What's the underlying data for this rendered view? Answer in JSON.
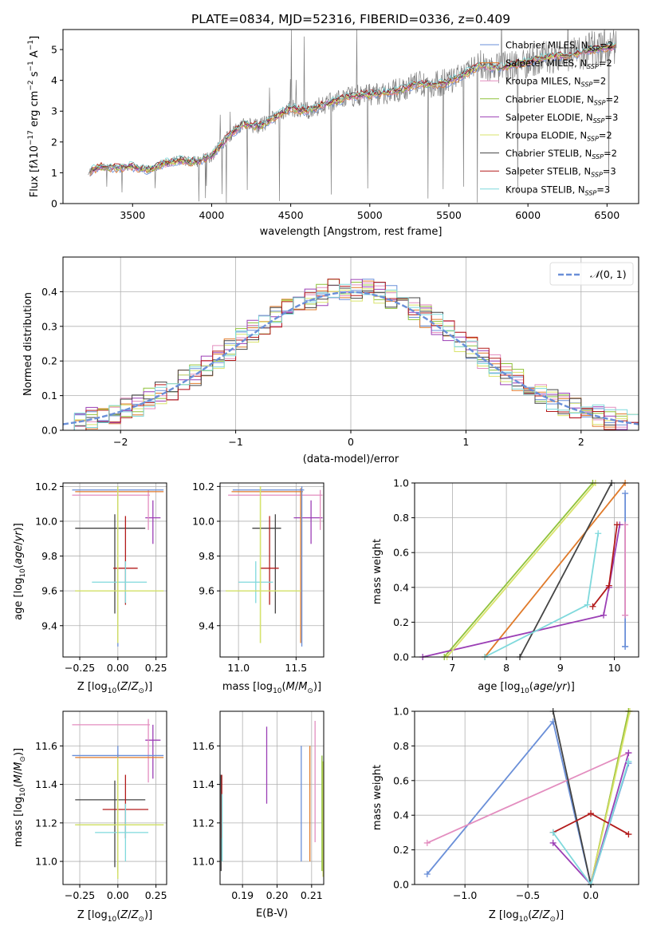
{
  "figure": {
    "colors": [
      "#6a8fd8",
      "#e07a2a",
      "#e38dbf",
      "#8fc23a",
      "#9b3fb5",
      "#d9e36b",
      "#444444",
      "#b31b1b",
      "#7fd9dc"
    ],
    "grey": "#808080"
  },
  "chart_data": [
    {
      "id": "spectrum",
      "type": "line",
      "title": "PLATE=0834, MJD=52316, FIBERID=0336, z=0.409",
      "xlabel": "wavelength [Angstrom, rest frame]",
      "ylabel": "Flux [f$_\\lambda$10$^{-17}$ erg cm$^{-2}$ s$^{-1}$ A$^{-1}$]",
      "xlim": [
        3060,
        6700
      ],
      "ylim": [
        0,
        5.65
      ],
      "xticks": [
        3500,
        4000,
        4500,
        5000,
        5500,
        6000,
        6500
      ],
      "yticks": [
        0,
        1,
        2,
        3,
        4,
        5
      ],
      "grid": false,
      "legend_position": "top-right",
      "legend": [
        "Chabrier MILES, N$_{SSP}$=2",
        "Salpeter MILES, N$_{SSP}$=2",
        "Kroupa MILES, N$_{SSP}$=2",
        "Chabrier ELODIE, N$_{SSP}$=2",
        "Salpeter ELODIE, N$_{SSP}$=3",
        "Kroupa ELODIE, N$_{SSP}$=2",
        "Chabrier STELIB, N$_{SSP}$=2",
        "Salpeter STELIB, N$_{SSP}$=3",
        "Kroupa STELIB, N$_{SSP}$=3"
      ],
      "continuum": {
        "x": [
          3230,
          3300,
          3400,
          3500,
          3600,
          3700,
          3800,
          3900,
          4000,
          4100,
          4200,
          4300,
          4400,
          4500,
          4600,
          4700,
          4800,
          4900,
          5000,
          5100,
          5200,
          5300,
          5400,
          5500,
          5600,
          5700,
          5800,
          5900,
          6000,
          6100,
          6200,
          6300,
          6400,
          6550
        ],
        "y": [
          1.05,
          1.2,
          1.15,
          1.2,
          1.1,
          1.3,
          1.4,
          1.35,
          1.55,
          2.15,
          2.6,
          2.5,
          2.8,
          3.1,
          3.0,
          3.2,
          3.35,
          3.5,
          3.55,
          3.6,
          3.7,
          3.9,
          3.85,
          3.95,
          4.2,
          4.5,
          4.4,
          4.5,
          4.6,
          4.75,
          4.8,
          4.85,
          5.0,
          5.1
        ]
      }
    },
    {
      "id": "residuals",
      "type": "area",
      "xlabel": "(data-model)/error",
      "ylabel": "Normed distribution",
      "xlim": [
        -2.5,
        2.5
      ],
      "ylim": [
        0,
        0.5
      ],
      "xticks": [
        -2,
        -1,
        0,
        1,
        2
      ],
      "yticks": [
        0.0,
        0.1,
        0.2,
        0.3,
        0.4
      ],
      "grid": true,
      "legend_position": "top-right",
      "legend": [
        "$\\mathcal{N}(0,1)$"
      ]
    },
    {
      "id": "age_vs_Z",
      "type": "scatter",
      "xlabel": "Z [log$_{10}$($Z/Z_\\odot$)]",
      "ylabel": "age  [log$_{10}$($age/yr$)]",
      "xlim": [
        -0.36,
        0.32
      ],
      "ylim": [
        9.22,
        10.22
      ],
      "xticks": [
        -0.25,
        0.0,
        0.25
      ],
      "yticks": [
        9.4,
        9.6,
        9.8,
        10.0,
        10.2
      ],
      "grid": true,
      "points": [
        {
          "x": -0.02,
          "y": 9.96,
          "xerr": [
            0.26,
            0.2
          ],
          "yerr": [
            0.49,
            0.08
          ],
          "series": 6
        },
        {
          "x": 0.05,
          "y": 9.73,
          "xerr": [
            0.08,
            0.08
          ],
          "yerr": [
            0.21,
            0.3
          ],
          "series": 7
        },
        {
          "x": 0.05,
          "y": 9.65,
          "xerr": [
            0.22,
            0.14
          ],
          "yerr": [
            0.12,
            0.12
          ],
          "series": 8
        },
        {
          "x": 0.23,
          "y": 10.02,
          "xerr": [
            0.05,
            0.05
          ],
          "yerr": [
            0.15,
            0.1
          ],
          "series": 4
        },
        {
          "x": 0.2,
          "y": 10.15,
          "xerr": [
            0.5,
            0.01
          ],
          "yerr": [
            0.2,
            0.03
          ],
          "series": 2
        },
        {
          "x": 0.0,
          "y": 10.17,
          "xerr": [
            0.28,
            0.3
          ],
          "yerr": [
            0.87,
            0.02
          ],
          "series": 1
        },
        {
          "x": 0.0,
          "y": 10.18,
          "xerr": [
            0.3,
            0.3
          ],
          "yerr": [
            0.9,
            0.02
          ],
          "series": 0
        },
        {
          "x": 0.0,
          "y": 9.6,
          "xerr": [
            0.28,
            0.3
          ],
          "yerr": [
            0.3,
            0.6
          ],
          "series": 3
        },
        {
          "x": 0.0,
          "y": 9.6,
          "xerr": [
            0.28,
            0.3
          ],
          "yerr": [
            0.3,
            0.6
          ],
          "series": 5
        }
      ]
    },
    {
      "id": "age_vs_mass",
      "type": "scatter",
      "xlabel": "mass [log$_{10}$($M/M_\\odot$)]",
      "ylabel": "",
      "xlim": [
        10.84,
        11.74
      ],
      "ylim": [
        9.22,
        10.22
      ],
      "xticks": [
        11.0,
        11.5
      ],
      "yticks": [
        9.4,
        9.6,
        9.8,
        10.0,
        10.2
      ],
      "grid": true,
      "points": [
        {
          "x": 11.32,
          "y": 9.96,
          "xerr": [
            0.2,
            0.05
          ],
          "yerr": [
            0.49,
            0.08
          ],
          "series": 6
        },
        {
          "x": 11.27,
          "y": 9.73,
          "xerr": [
            0.08,
            0.08
          ],
          "yerr": [
            0.21,
            0.3
          ],
          "series": 7
        },
        {
          "x": 11.15,
          "y": 9.65,
          "xerr": [
            0.15,
            0.15
          ],
          "yerr": [
            0.12,
            0.12
          ],
          "series": 8
        },
        {
          "x": 11.63,
          "y": 10.02,
          "xerr": [
            0.15,
            0.1
          ],
          "yerr": [
            0.15,
            0.1
          ],
          "series": 4
        },
        {
          "x": 11.71,
          "y": 10.15,
          "xerr": [
            0.8,
            0.02
          ],
          "yerr": [
            0.2,
            0.03
          ],
          "series": 2
        },
        {
          "x": 11.54,
          "y": 10.17,
          "xerr": [
            0.6,
            0.02
          ],
          "yerr": [
            0.87,
            0.02
          ],
          "series": 1
        },
        {
          "x": 11.55,
          "y": 10.18,
          "xerr": [
            0.6,
            0.02
          ],
          "yerr": [
            0.9,
            0.02
          ],
          "series": 0
        },
        {
          "x": 11.19,
          "y": 9.6,
          "xerr": [
            0.3,
            0.35
          ],
          "yerr": [
            0.3,
            0.6
          ],
          "series": 3
        },
        {
          "x": 11.19,
          "y": 9.6,
          "xerr": [
            0.3,
            0.35
          ],
          "yerr": [
            0.3,
            0.6
          ],
          "series": 5
        }
      ]
    },
    {
      "id": "weight_vs_age",
      "type": "line",
      "xlabel": "age  [log$_{10}$($age/yr$)]",
      "ylabel": "mass weight",
      "xlim": [
        6.3,
        10.45
      ],
      "ylim": [
        0,
        1
      ],
      "xticks": [
        7,
        8,
        9,
        10
      ],
      "yticks": [
        0.0,
        0.2,
        0.4,
        0.6,
        0.8,
        1.0
      ],
      "grid": true,
      "series": [
        {
          "series": 0,
          "x": [
            10.2,
            10.2,
            10.2
          ],
          "y": [
            0.06,
            0.94,
            0.06
          ]
        },
        {
          "series": 1,
          "x": [
            7.6,
            10.2
          ],
          "y": [
            0.0,
            1.0
          ]
        },
        {
          "series": 2,
          "x": [
            10.2,
            10.2
          ],
          "y": [
            0.24,
            0.76
          ]
        },
        {
          "series": 3,
          "x": [
            6.85,
            9.6
          ],
          "y": [
            0.0,
            1.0
          ]
        },
        {
          "series": 4,
          "x": [
            6.45,
            9.8,
            9.9,
            10.1
          ],
          "y": [
            0.0,
            0.24,
            0.4,
            0.76
          ]
        },
        {
          "series": 5,
          "x": [
            6.9,
            9.65
          ],
          "y": [
            0.0,
            1.0
          ]
        },
        {
          "series": 6,
          "x": [
            8.25,
            9.95
          ],
          "y": [
            0.0,
            1.0
          ]
        },
        {
          "series": 7,
          "x": [
            9.6,
            9.9,
            10.05
          ],
          "y": [
            0.29,
            0.41,
            0.76
          ]
        },
        {
          "series": 8,
          "x": [
            7.6,
            9.5,
            9.7
          ],
          "y": [
            0.0,
            0.3,
            0.71
          ]
        }
      ]
    },
    {
      "id": "mass_vs_Z",
      "type": "scatter",
      "xlabel": "Z [log$_{10}$($Z/Z_\\odot$)]",
      "ylabel": "mass [log$_{10}$($M/M_\\odot$)]",
      "xlim": [
        -0.36,
        0.32
      ],
      "ylim": [
        10.88,
        11.78
      ],
      "xticks": [
        -0.25,
        0.0,
        0.25
      ],
      "yticks": [
        11.0,
        11.2,
        11.4,
        11.6
      ],
      "grid": true,
      "points": [
        {
          "x": -0.02,
          "y": 11.32,
          "xerr": [
            0.26,
            0.2
          ],
          "yerr": [
            0.35,
            0.1
          ],
          "series": 6
        },
        {
          "x": 0.05,
          "y": 11.27,
          "xerr": [
            0.15,
            0.15
          ],
          "yerr": [
            0.15,
            0.18
          ],
          "series": 7
        },
        {
          "x": 0.05,
          "y": 11.15,
          "xerr": [
            0.2,
            0.15
          ],
          "yerr": [
            0.15,
            0.15
          ],
          "series": 8
        },
        {
          "x": 0.23,
          "y": 11.63,
          "xerr": [
            0.05,
            0.05
          ],
          "yerr": [
            0.2,
            0.08
          ],
          "series": 4
        },
        {
          "x": 0.2,
          "y": 11.71,
          "xerr": [
            0.5,
            0.01
          ],
          "yerr": [
            0.3,
            0.03
          ],
          "series": 2
        },
        {
          "x": 0.0,
          "y": 11.54,
          "xerr": [
            0.28,
            0.3
          ],
          "yerr": [
            0.6,
            0.02
          ],
          "series": 1
        },
        {
          "x": 0.0,
          "y": 11.55,
          "xerr": [
            0.3,
            0.3
          ],
          "yerr": [
            0.6,
            0.05
          ],
          "series": 0
        },
        {
          "x": 0.0,
          "y": 11.19,
          "xerr": [
            0.28,
            0.3
          ],
          "yerr": [
            0.28,
            0.35
          ],
          "series": 3
        },
        {
          "x": 0.0,
          "y": 11.19,
          "xerr": [
            0.28,
            0.3
          ],
          "yerr": [
            0.28,
            0.35
          ],
          "series": 5
        }
      ]
    },
    {
      "id": "mass_vs_ebv",
      "type": "scatter",
      "xlabel": "E(B-V)",
      "ylabel": "",
      "xlim": [
        0.1835,
        0.2135
      ],
      "ylim": [
        10.88,
        11.78
      ],
      "xticks": [
        0.19,
        0.2,
        0.21
      ],
      "yticks": [
        11.0,
        11.2,
        11.4,
        11.6
      ],
      "grid": true,
      "points": [
        {
          "x": 0.1838,
          "y": 11.2,
          "yerr": [
            0.25,
            0.25
          ],
          "series": 6
        },
        {
          "x": 0.184,
          "y": 11.3,
          "yerr": [
            0.18,
            0.15
          ],
          "series": 7
        },
        {
          "x": 0.1841,
          "y": 11.15,
          "yerr": [
            0.15,
            0.2
          ],
          "series": 8
        },
        {
          "x": 0.197,
          "y": 11.5,
          "yerr": [
            0.2,
            0.2
          ],
          "series": 4
        },
        {
          "x": 0.207,
          "y": 11.3,
          "yerr": [
            0.3,
            0.3
          ],
          "series": 0
        },
        {
          "x": 0.2095,
          "y": 11.3,
          "yerr": [
            0.3,
            0.3
          ],
          "series": 1
        },
        {
          "x": 0.211,
          "y": 11.45,
          "yerr": [
            0.35,
            0.28
          ],
          "series": 2
        },
        {
          "x": 0.213,
          "y": 11.25,
          "yerr": [
            0.3,
            0.3
          ],
          "series": 3
        },
        {
          "x": 0.2133,
          "y": 11.22,
          "yerr": [
            0.3,
            0.3
          ],
          "series": 5
        }
      ]
    },
    {
      "id": "weight_vs_Z",
      "type": "line",
      "xlabel": "Z [log$_{10}$($Z/Z_\\odot$)]",
      "ylabel": "mass weight",
      "xlim": [
        -1.4,
        0.38
      ],
      "ylim": [
        0,
        1
      ],
      "xticks": [
        -1.0,
        -0.5,
        0.0
      ],
      "yticks": [
        0.0,
        0.2,
        0.4,
        0.6,
        0.8,
        1.0
      ],
      "grid": true,
      "series": [
        {
          "series": 0,
          "x": [
            -1.3,
            -0.3,
            0.0,
            0.3
          ],
          "y": [
            0.06,
            0.94,
            0.0,
            0.7
          ]
        },
        {
          "series": 2,
          "x": [
            -1.3,
            0.3
          ],
          "y": [
            0.24,
            0.76
          ]
        },
        {
          "series": 1,
          "x": [
            0.0,
            0.3
          ],
          "y": [
            0.0,
            1.0
          ]
        },
        {
          "series": 3,
          "x": [
            0.0,
            0.3
          ],
          "y": [
            0.0,
            1.0
          ]
        },
        {
          "series": 5,
          "x": [
            0.0,
            0.31
          ],
          "y": [
            0.0,
            1.0
          ]
        },
        {
          "series": 6,
          "x": [
            -0.3,
            0.0
          ],
          "y": [
            1.0,
            0.0
          ]
        },
        {
          "series": 4,
          "x": [
            -0.3,
            0.0,
            0.3
          ],
          "y": [
            0.24,
            0.0,
            0.76
          ]
        },
        {
          "series": 7,
          "x": [
            -0.3,
            0.0,
            0.3
          ],
          "y": [
            0.3,
            0.41,
            0.29
          ]
        },
        {
          "series": 8,
          "x": [
            -0.3,
            0.0,
            0.3
          ],
          "y": [
            0.3,
            0.0,
            0.71
          ]
        }
      ]
    }
  ]
}
